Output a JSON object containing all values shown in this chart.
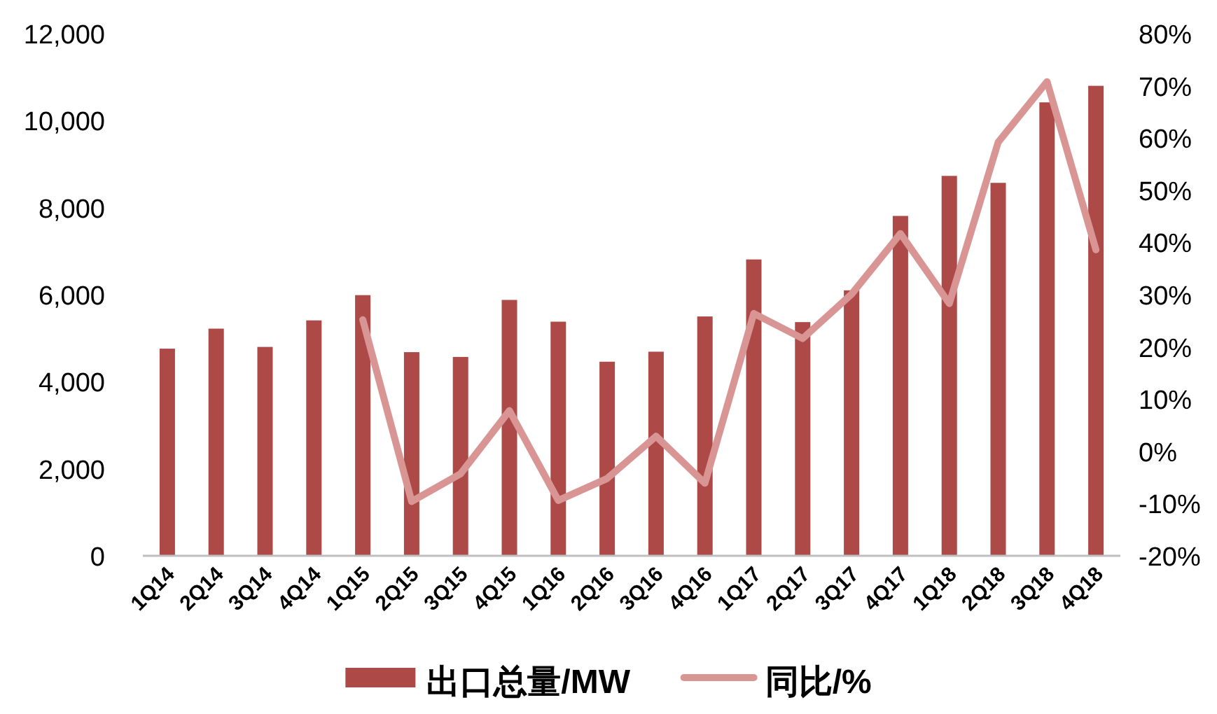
{
  "chart_data": {
    "type": "bar",
    "categories": [
      "1Q14",
      "2Q14",
      "3Q14",
      "4Q14",
      "1Q15",
      "2Q15",
      "3Q15",
      "4Q15",
      "1Q16",
      "2Q16",
      "3Q16",
      "4Q16",
      "1Q17",
      "2Q17",
      "3Q17",
      "4Q17",
      "1Q18",
      "2Q18",
      "3Q18",
      "4Q18"
    ],
    "series": [
      {
        "name": "出口总量/MW",
        "color": "#ad4a47",
        "values": [
          4760,
          5220,
          4800,
          5410,
          5990,
          4680,
          4570,
          5880,
          5380,
          4460,
          4690,
          5500,
          6810,
          5370,
          6100,
          7810,
          8730,
          8570,
          10420,
          10800
        ]
      },
      {
        "name": "同比/%",
        "type": "line",
        "axis": "y2",
        "color": "#d99594",
        "values": [
          null,
          null,
          null,
          null,
          25.2,
          -9.6,
          -4.3,
          7.8,
          -9.4,
          -5.2,
          2.9,
          -6.1,
          26.4,
          21.6,
          30.1,
          41.7,
          28.3,
          59.2,
          70.8,
          38.6
        ]
      }
    ],
    "ylim": [
      0,
      12000
    ],
    "yticks": [
      0,
      {
        "value": 2000,
        "label": "2,000"
      },
      {
        "value": 4000,
        "label": "4,000"
      },
      {
        "value": 6000,
        "label": "6,000"
      },
      {
        "value": 8000,
        "label": "8,000"
      },
      {
        "value": 10000,
        "label": "10,000"
      },
      {
        "value": 12000,
        "label": "12,000"
      }
    ],
    "y2lim": [
      -20,
      80
    ],
    "y2ticks": [
      {
        "value": -20,
        "label": "-20%"
      },
      {
        "value": -10,
        "label": "-10%"
      },
      {
        "value": 0,
        "label": "0%"
      },
      {
        "value": 10,
        "label": "10%"
      },
      {
        "value": 20,
        "label": "20%"
      },
      {
        "value": 30,
        "label": "30%"
      },
      {
        "value": 40,
        "label": "40%"
      },
      {
        "value": 50,
        "label": "50%"
      },
      {
        "value": 60,
        "label": "60%"
      },
      {
        "value": 70,
        "label": "70%"
      },
      {
        "value": 80,
        "label": "80%"
      }
    ],
    "grid": false,
    "legend": "bottom"
  }
}
